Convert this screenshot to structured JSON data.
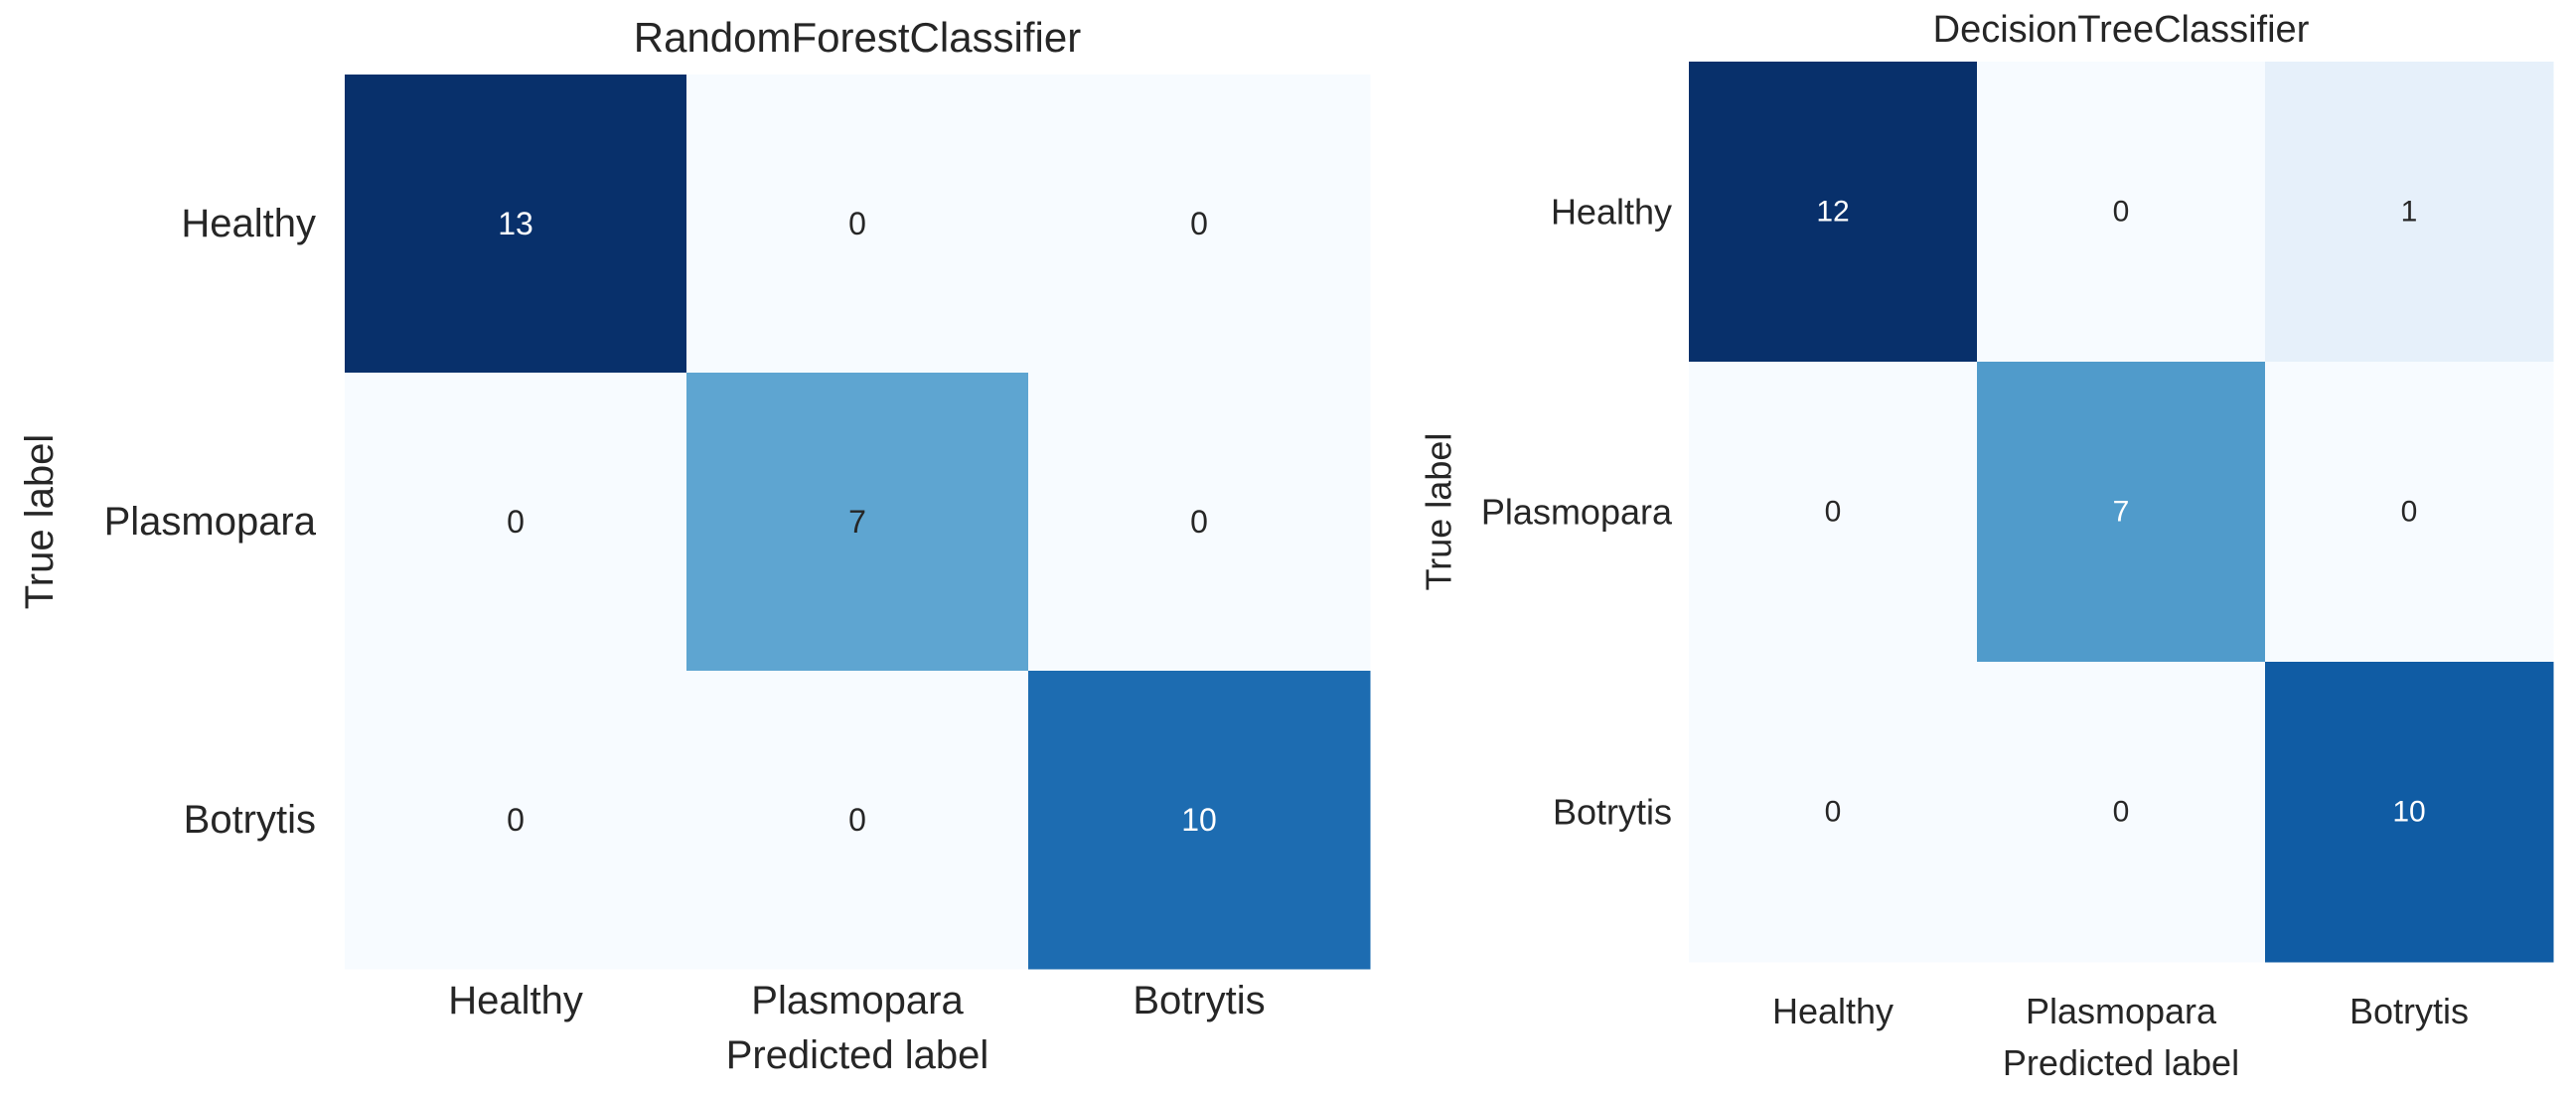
{
  "chart_data": [
    {
      "type": "heatmap",
      "title": "RandomForestClassifier",
      "xlabel": "Predicted label",
      "ylabel": "True label",
      "x_categories": [
        "Healthy",
        "Plasmopara",
        "Botrytis"
      ],
      "y_categories": [
        "Healthy",
        "Plasmopara",
        "Botrytis"
      ],
      "values": [
        [
          13,
          0,
          0
        ],
        [
          0,
          7,
          0
        ],
        [
          0,
          0,
          10
        ]
      ],
      "colormap": "Blues",
      "value_range": [
        0,
        13
      ]
    },
    {
      "type": "heatmap",
      "title": "DecisionTreeClassifier",
      "xlabel": "Predicted label",
      "ylabel": "True label",
      "x_categories": [
        "Healthy",
        "Plasmopara",
        "Botrytis"
      ],
      "y_categories": [
        "Healthy",
        "Plasmopara",
        "Botrytis"
      ],
      "values": [
        [
          12,
          0,
          1
        ],
        [
          0,
          7,
          0
        ],
        [
          0,
          0,
          10
        ]
      ],
      "colormap": "Blues",
      "value_range": [
        0,
        12
      ]
    }
  ],
  "colors": {
    "low": "#f7fbff",
    "mid_low": "#c6dbef",
    "mid": "#6baed6",
    "mid_high": "#2171b5",
    "high": "#08306b",
    "text_dark": "#262626",
    "text_light": "#ffffff"
  }
}
